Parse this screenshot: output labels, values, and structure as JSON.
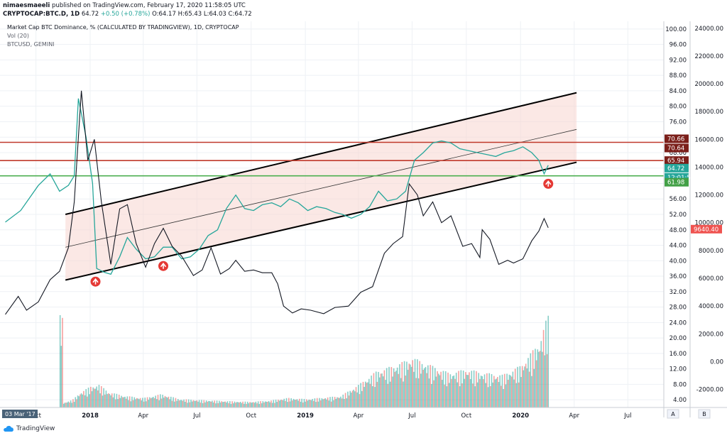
{
  "header": {
    "user": "nimaesmaeeli",
    "published_text": "published on TradingView.com, February 17, 2020 11:58:05 UTC",
    "symbol": "CRYPTOCAP:BTC.D, 1D",
    "last": "64.72",
    "change": "+0.50 (+0.78%)",
    "o_label": "O:",
    "o": "64.17",
    "h_label": "H:",
    "h": "65.43",
    "l_label": "L:",
    "l": "64.03",
    "c_label": "C:",
    "c": "64.72"
  },
  "legend": {
    "line1": "Market Cap BTC Dominance, % (CALCULATED BY TRADINGVIEW), 1D, CRYPTOCAP",
    "line2": "Vol (20)",
    "line3": "BTCUSD, GEMINI"
  },
  "brand": "TradingView",
  "colors": {
    "up": "#26a69a",
    "down": "#ef5350",
    "channel_fill": "#f7d5d0",
    "resistance": "#c0392b",
    "support": "#4caf50",
    "marker": "#e53935",
    "btc_line": "#131722"
  },
  "chart_data": {
    "type": "line",
    "title": "Market Cap BTC Dominance, % (CALCULATED BY TRADINGVIEW), 1D, CRYPTOCAP",
    "x_ticks": [
      "Oct",
      "2018",
      "Apr",
      "Jul",
      "Oct",
      "2019",
      "Apr",
      "Jul",
      "Oct",
      "2020",
      "Apr",
      "Jul"
    ],
    "x_range": [
      "2017-09",
      "2020-08"
    ],
    "left_scale": {
      "ticks": [
        "100.00",
        "96.00",
        "92.00",
        "88.00",
        "84.00",
        "80.00",
        "76.00",
        "72.00",
        "68.00",
        "64.00",
        "60.00",
        "56.00",
        "52.00",
        "48.00",
        "44.00",
        "40.00",
        "36.00",
        "32.00",
        "28.00",
        "24.00",
        "20.00",
        "16.00",
        "12.00",
        "8.00",
        "4.00"
      ],
      "range": [
        2,
        102
      ]
    },
    "right_scale": {
      "ticks": [
        "24000.00",
        "22000.00",
        "20000.00",
        "18000.00",
        "16000.00",
        "14000.00",
        "12000.00",
        "10000.00",
        "8000.00",
        "6000.00",
        "4000.00",
        "2000.00",
        "0.00",
        "-2000.00"
      ],
      "range": [
        -3300,
        24500
      ]
    },
    "price_labels": [
      {
        "text": "70.66",
        "style": "dark"
      },
      {
        "text": "70.64",
        "style": "dark"
      },
      {
        "text": "65.94",
        "style": "dark"
      },
      {
        "text": "64.72",
        "style": "teal"
      },
      {
        "text": "12:01:58",
        "style": "teal"
      },
      {
        "text": "61.98",
        "style": "green"
      },
      {
        "text": "9640.40",
        "style": "red"
      }
    ],
    "horizontal_levels": [
      {
        "name": "Resistance high",
        "value": 70.66
      },
      {
        "name": "Resistance low",
        "value": 65.94
      },
      {
        "name": "Support",
        "value": 61.98
      }
    ],
    "channel": {
      "start": "2017-11-20",
      "end": "2020-04-05",
      "upper": [
        52.0,
        83.5
      ],
      "middle": [
        43.5,
        74.0
      ],
      "lower": [
        35.0,
        65.5
      ]
    },
    "series": [
      {
        "name": "BTC.D",
        "points": [
          [
            "2017-08-10",
            50.0
          ],
          [
            "2017-09-05",
            53.0
          ],
          [
            "2017-10-05",
            59.5
          ],
          [
            "2017-10-25",
            62.5
          ],
          [
            "2017-11-10",
            58.0
          ],
          [
            "2017-11-25",
            59.5
          ],
          [
            "2017-12-05",
            62.0
          ],
          [
            "2017-12-12",
            82.0
          ],
          [
            "2017-12-25",
            72.0
          ],
          [
            "2018-01-05",
            60.0
          ],
          [
            "2018-01-12",
            38.0
          ],
          [
            "2018-01-25",
            37.0
          ],
          [
            "2018-02-05",
            36.5
          ],
          [
            "2018-02-20",
            41.0
          ],
          [
            "2018-03-05",
            46.0
          ],
          [
            "2018-03-20",
            43.0
          ],
          [
            "2018-04-05",
            40.5
          ],
          [
            "2018-04-20",
            41.0
          ],
          [
            "2018-05-05",
            43.5
          ],
          [
            "2018-05-20",
            43.5
          ],
          [
            "2018-06-05",
            40.5
          ],
          [
            "2018-06-20",
            41.0
          ],
          [
            "2018-07-05",
            43.0
          ],
          [
            "2018-07-20",
            46.5
          ],
          [
            "2018-08-05",
            48.0
          ],
          [
            "2018-08-20",
            53.5
          ],
          [
            "2018-09-05",
            57.0
          ],
          [
            "2018-09-20",
            53.5
          ],
          [
            "2018-10-05",
            53.0
          ],
          [
            "2018-10-20",
            54.5
          ],
          [
            "2018-11-05",
            55.0
          ],
          [
            "2018-11-20",
            54.0
          ],
          [
            "2018-12-05",
            56.0
          ],
          [
            "2018-12-20",
            55.0
          ],
          [
            "2019-01-05",
            53.0
          ],
          [
            "2019-01-20",
            54.0
          ],
          [
            "2019-02-05",
            53.5
          ],
          [
            "2019-02-20",
            52.5
          ],
          [
            "2019-03-05",
            52.0
          ],
          [
            "2019-03-20",
            51.0
          ],
          [
            "2019-04-05",
            52.0
          ],
          [
            "2019-04-20",
            54.0
          ],
          [
            "2019-05-05",
            58.0
          ],
          [
            "2019-05-20",
            55.5
          ],
          [
            "2019-06-05",
            56.0
          ],
          [
            "2019-06-20",
            58.0
          ],
          [
            "2019-07-05",
            66.0
          ],
          [
            "2019-07-20",
            68.0
          ],
          [
            "2019-08-05",
            70.5
          ],
          [
            "2019-08-20",
            71.0
          ],
          [
            "2019-09-05",
            70.5
          ],
          [
            "2019-09-20",
            69.0
          ],
          [
            "2019-10-05",
            68.5
          ],
          [
            "2019-10-20",
            68.0
          ],
          [
            "2019-11-05",
            67.5
          ],
          [
            "2019-11-20",
            67.0
          ],
          [
            "2019-12-05",
            68.0
          ],
          [
            "2019-12-20",
            68.5
          ],
          [
            "2020-01-05",
            69.5
          ],
          [
            "2020-01-20",
            68.0
          ],
          [
            "2020-02-01",
            66.0
          ],
          [
            "2020-02-10",
            62.5
          ],
          [
            "2020-02-17",
            64.72
          ]
        ]
      },
      {
        "name": "BTCUSD, GEMINI",
        "points": [
          [
            "2017-08-10",
            3400
          ],
          [
            "2017-09-01",
            4700
          ],
          [
            "2017-09-15",
            3700
          ],
          [
            "2017-10-05",
            4300
          ],
          [
            "2017-10-25",
            5900
          ],
          [
            "2017-11-10",
            6500
          ],
          [
            "2017-11-25",
            8200
          ],
          [
            "2017-12-05",
            11500
          ],
          [
            "2017-12-17",
            19500
          ],
          [
            "2017-12-28",
            14500
          ],
          [
            "2018-01-08",
            16000
          ],
          [
            "2018-01-20",
            11500
          ],
          [
            "2018-02-05",
            7000
          ],
          [
            "2018-02-20",
            11000
          ],
          [
            "2018-03-05",
            11300
          ],
          [
            "2018-03-20",
            8500
          ],
          [
            "2018-04-05",
            6800
          ],
          [
            "2018-04-20",
            8500
          ],
          [
            "2018-05-05",
            9600
          ],
          [
            "2018-05-20",
            8300
          ],
          [
            "2018-06-05",
            7600
          ],
          [
            "2018-06-25",
            6200
          ],
          [
            "2018-07-10",
            6600
          ],
          [
            "2018-07-25",
            8200
          ],
          [
            "2018-08-10",
            6300
          ],
          [
            "2018-08-25",
            6700
          ],
          [
            "2018-09-05",
            7300
          ],
          [
            "2018-09-20",
            6500
          ],
          [
            "2018-10-05",
            6600
          ],
          [
            "2018-10-20",
            6400
          ],
          [
            "2018-11-05",
            6400
          ],
          [
            "2018-11-15",
            5600
          ],
          [
            "2018-11-25",
            4000
          ],
          [
            "2018-12-10",
            3500
          ],
          [
            "2018-12-25",
            3800
          ],
          [
            "2019-01-10",
            3700
          ],
          [
            "2019-02-01",
            3450
          ],
          [
            "2019-02-20",
            3900
          ],
          [
            "2019-03-15",
            4000
          ],
          [
            "2019-04-05",
            5000
          ],
          [
            "2019-04-25",
            5400
          ],
          [
            "2019-05-15",
            7800
          ],
          [
            "2019-05-30",
            8500
          ],
          [
            "2019-06-15",
            9000
          ],
          [
            "2019-06-26",
            12800
          ],
          [
            "2019-07-10",
            12000
          ],
          [
            "2019-07-20",
            10500
          ],
          [
            "2019-08-05",
            11500
          ],
          [
            "2019-08-20",
            10000
          ],
          [
            "2019-09-05",
            10500
          ],
          [
            "2019-09-25",
            8300
          ],
          [
            "2019-10-10",
            8500
          ],
          [
            "2019-10-24",
            7500
          ],
          [
            "2019-10-28",
            9500
          ],
          [
            "2019-11-10",
            8800
          ],
          [
            "2019-11-25",
            7000
          ],
          [
            "2019-12-10",
            7300
          ],
          [
            "2019-12-20",
            7100
          ],
          [
            "2020-01-05",
            7400
          ],
          [
            "2020-01-20",
            8700
          ],
          [
            "2020-02-01",
            9400
          ],
          [
            "2020-02-10",
            10300
          ],
          [
            "2020-02-17",
            9640
          ]
        ]
      }
    ],
    "volume": {
      "name": "Vol (20)",
      "points": [
        [
          "2017-11-15",
          1.2
        ],
        [
          "2017-12-01",
          2.0
        ],
        [
          "2017-12-15",
          4.0
        ],
        [
          "2018-01-01",
          5.5
        ],
        [
          "2018-01-15",
          6.0
        ],
        [
          "2018-02-01",
          4.0
        ],
        [
          "2018-03-01",
          3.0
        ],
        [
          "2018-04-01",
          2.5
        ],
        [
          "2018-05-01",
          3.5
        ],
        [
          "2018-06-01",
          2.2
        ],
        [
          "2018-07-01",
          2.0
        ],
        [
          "2018-08-01",
          1.8
        ],
        [
          "2018-09-01",
          1.6
        ],
        [
          "2018-10-01",
          1.5
        ],
        [
          "2018-11-01",
          1.8
        ],
        [
          "2018-12-01",
          2.5
        ],
        [
          "2019-01-01",
          2.2
        ],
        [
          "2019-02-01",
          2.6
        ],
        [
          "2019-03-01",
          3.0
        ],
        [
          "2019-04-01",
          6.0
        ],
        [
          "2019-05-01",
          9.5
        ],
        [
          "2019-06-01",
          11.0
        ],
        [
          "2019-07-01",
          13.0
        ],
        [
          "2019-08-01",
          11.0
        ],
        [
          "2019-09-01",
          9.0
        ],
        [
          "2019-10-01",
          10.0
        ],
        [
          "2019-11-01",
          9.0
        ],
        [
          "2019-12-01",
          8.5
        ],
        [
          "2020-01-01",
          11.0
        ],
        [
          "2020-02-01",
          17.0
        ],
        [
          "2020-02-15",
          24.0
        ]
      ]
    },
    "markers": [
      "2018-01-10",
      "2018-05-05",
      "2020-02-17"
    ],
    "time_badge": "03 Mar '17",
    "scale_buttons": [
      "A",
      "B"
    ]
  }
}
